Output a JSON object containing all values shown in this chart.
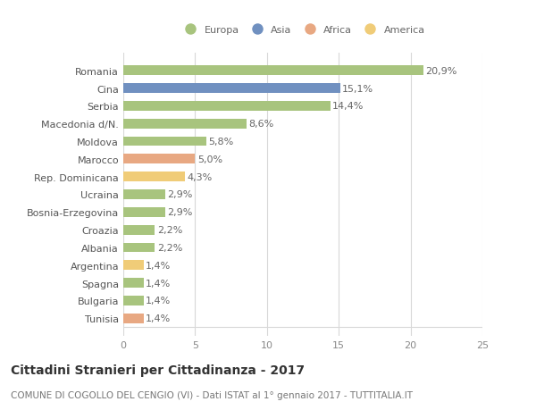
{
  "categories": [
    "Romania",
    "Cina",
    "Serbia",
    "Macedonia d/N.",
    "Moldova",
    "Marocco",
    "Rep. Dominicana",
    "Ucraina",
    "Bosnia-Erzegovina",
    "Croazia",
    "Albania",
    "Argentina",
    "Spagna",
    "Bulgaria",
    "Tunisia"
  ],
  "values": [
    20.9,
    15.1,
    14.4,
    8.6,
    5.8,
    5.0,
    4.3,
    2.9,
    2.9,
    2.2,
    2.2,
    1.4,
    1.4,
    1.4,
    1.4
  ],
  "labels": [
    "20,9%",
    "15,1%",
    "14,4%",
    "8,6%",
    "5,8%",
    "5,0%",
    "4,3%",
    "2,9%",
    "2,9%",
    "2,2%",
    "2,2%",
    "1,4%",
    "1,4%",
    "1,4%",
    "1,4%"
  ],
  "colors": [
    "#a8c47e",
    "#7090c0",
    "#a8c47e",
    "#a8c47e",
    "#a8c47e",
    "#e8a882",
    "#f0cc78",
    "#a8c47e",
    "#a8c47e",
    "#a8c47e",
    "#a8c47e",
    "#f0cc78",
    "#a8c47e",
    "#a8c47e",
    "#e8a882"
  ],
  "legend_labels": [
    "Europa",
    "Asia",
    "Africa",
    "America"
  ],
  "legend_colors": [
    "#a8c47e",
    "#7090c0",
    "#e8a882",
    "#f0cc78"
  ],
  "xlim": [
    0,
    25
  ],
  "xticks": [
    0,
    5,
    10,
    15,
    20,
    25
  ],
  "title": "Cittadini Stranieri per Cittadinanza - 2017",
  "subtitle": "COMUNE DI COGOLLO DEL CENGIO (VI) - Dati ISTAT al 1° gennaio 2017 - TUTTITALIA.IT",
  "bg_color": "#ffffff",
  "grid_color": "#d8d8d8",
  "bar_height": 0.55,
  "label_fontsize": 8,
  "tick_fontsize": 8,
  "title_fontsize": 10,
  "subtitle_fontsize": 7.5
}
